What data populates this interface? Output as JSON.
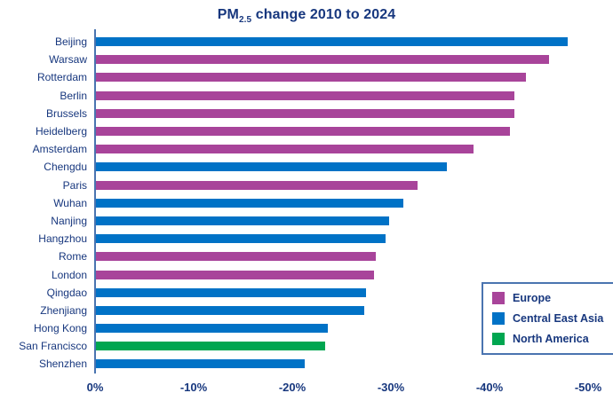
{
  "title": {
    "prefix": "PM",
    "subscript": "2.5",
    "suffix": " change 2010 to 2024"
  },
  "colors": {
    "europe": "#a8449a",
    "central_east_asia": "#0072c6",
    "north_america": "#00a650",
    "text": "#17377e",
    "axis_line": "#4a74b0",
    "legend_border": "#4a74b0",
    "background": "#ffffff"
  },
  "chart_data": {
    "type": "bar",
    "orientation": "horizontal",
    "title": "PM2.5 change 2010 to 2024",
    "xlabel": "",
    "ylabel": "",
    "unit": "%",
    "grid": false,
    "x_axis": {
      "ticks": [
        "0%",
        "-10%",
        "-20%",
        "-30%",
        "-40%",
        "-50%"
      ],
      "range": [
        0,
        -50
      ],
      "direction": "negative-to-right"
    },
    "legend": {
      "position": "bottom-right",
      "items": [
        {
          "label": "Europe",
          "region": "europe"
        },
        {
          "label": "Central East Asia",
          "region": "central_east_asia"
        },
        {
          "label": "North America",
          "region": "north_america"
        }
      ]
    },
    "cities": [
      {
        "name": "Beijing",
        "region": "central_east_asia",
        "value": -47.8
      },
      {
        "name": "Warsaw",
        "region": "europe",
        "value": -45.9
      },
      {
        "name": "Rotterdam",
        "region": "europe",
        "value": -43.6
      },
      {
        "name": "Berlin",
        "region": "europe",
        "value": -42.4
      },
      {
        "name": "Brussels",
        "region": "europe",
        "value": -42.4
      },
      {
        "name": "Heidelberg",
        "region": "europe",
        "value": -42.0
      },
      {
        "name": "Amsterdam",
        "region": "europe",
        "value": -38.3
      },
      {
        "name": "Chengdu",
        "region": "central_east_asia",
        "value": -35.6
      },
      {
        "name": "Paris",
        "region": "europe",
        "value": -32.6
      },
      {
        "name": "Wuhan",
        "region": "central_east_asia",
        "value": -31.2
      },
      {
        "name": "Nanjing",
        "region": "central_east_asia",
        "value": -29.7
      },
      {
        "name": "Hangzhou",
        "region": "central_east_asia",
        "value": -29.4
      },
      {
        "name": "Rome",
        "region": "europe",
        "value": -28.4
      },
      {
        "name": "London",
        "region": "europe",
        "value": -28.2
      },
      {
        "name": "Qingdao",
        "region": "central_east_asia",
        "value": -27.4
      },
      {
        "name": "Zhenjiang",
        "region": "central_east_asia",
        "value": -27.2
      },
      {
        "name": "Hong Kong",
        "region": "central_east_asia",
        "value": -23.5
      },
      {
        "name": "San Francisco",
        "region": "north_america",
        "value": -23.2
      },
      {
        "name": "Shenzhen",
        "region": "central_east_asia",
        "value": -21.2
      }
    ]
  }
}
